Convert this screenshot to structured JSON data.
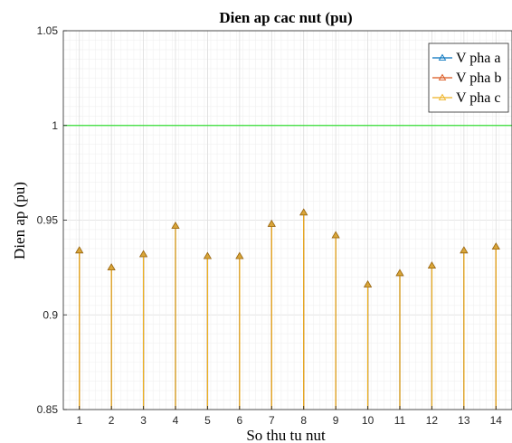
{
  "chart_data": {
    "type": "stem",
    "title": "Dien ap cac nut (pu)",
    "xlabel": "So thu tu nut",
    "ylabel": "Dien ap (pu)",
    "xlim": [
      0.5,
      14.5
    ],
    "ylim": [
      0.85,
      1.05
    ],
    "x_ticks": [
      1,
      2,
      3,
      4,
      5,
      6,
      7,
      8,
      9,
      10,
      11,
      12,
      13,
      14
    ],
    "y_ticks": [
      0.85,
      0.9,
      0.95,
      1,
      1.05
    ],
    "y_tick_labels": [
      "0.85",
      "0.9",
      "0.95",
      "1",
      "1.05"
    ],
    "grid": "major and minor",
    "legend_position": "top-right",
    "series": [
      {
        "name": "V pha a",
        "color": "#0072BD",
        "marker": "triangle",
        "values": [
          0.934,
          0.925,
          0.932,
          0.947,
          0.931,
          0.931,
          0.948,
          0.954,
          0.942,
          0.916,
          0.922,
          0.926,
          0.934,
          0.936
        ]
      },
      {
        "name": "V pha b",
        "color": "#D95319",
        "marker": "triangle",
        "values": [
          0.934,
          0.925,
          0.932,
          0.947,
          0.931,
          0.931,
          0.948,
          0.954,
          0.942,
          0.916,
          0.922,
          0.926,
          0.934,
          0.936
        ]
      },
      {
        "name": "V pha c",
        "color": "#EDB120",
        "marker": "triangle",
        "values": [
          0.934,
          0.925,
          0.932,
          0.947,
          0.931,
          0.931,
          0.948,
          0.954,
          0.942,
          0.916,
          0.922,
          0.926,
          0.934,
          0.936
        ]
      }
    ],
    "reference_line": {
      "y": 1,
      "color": "#33DD33"
    }
  }
}
